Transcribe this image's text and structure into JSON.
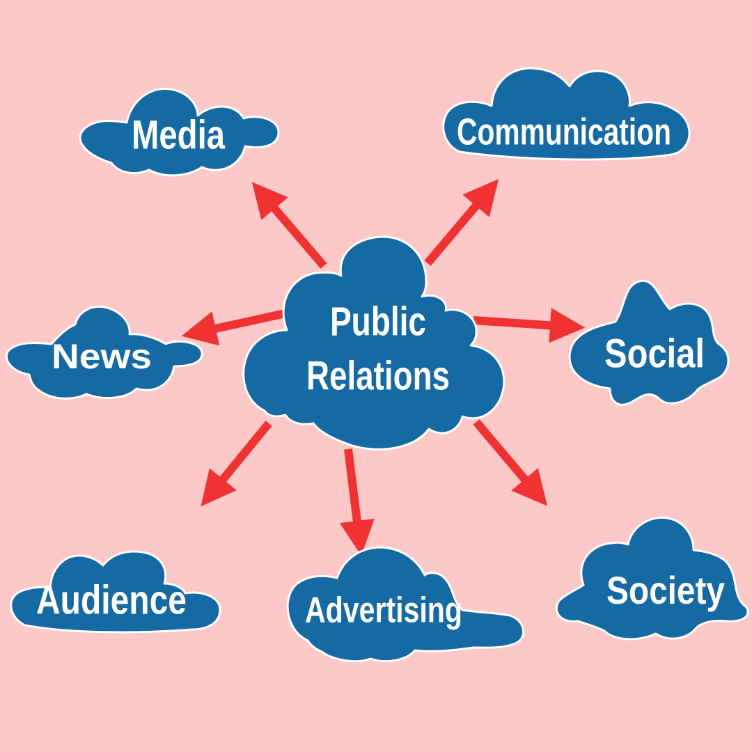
{
  "colors": {
    "background": "#fcc8c8",
    "cloud": "#156aa3",
    "cloud_outline": "#ffffff",
    "arrow": "#f03232",
    "text": "#ffffff"
  },
  "center": {
    "label_line1": "Public",
    "label_line2": "Relations"
  },
  "nodes": {
    "media": "Media",
    "communication": "Communication",
    "news": "News",
    "social": "Social",
    "audience": "Audience",
    "advertising": "Advertising",
    "society": "Society"
  }
}
